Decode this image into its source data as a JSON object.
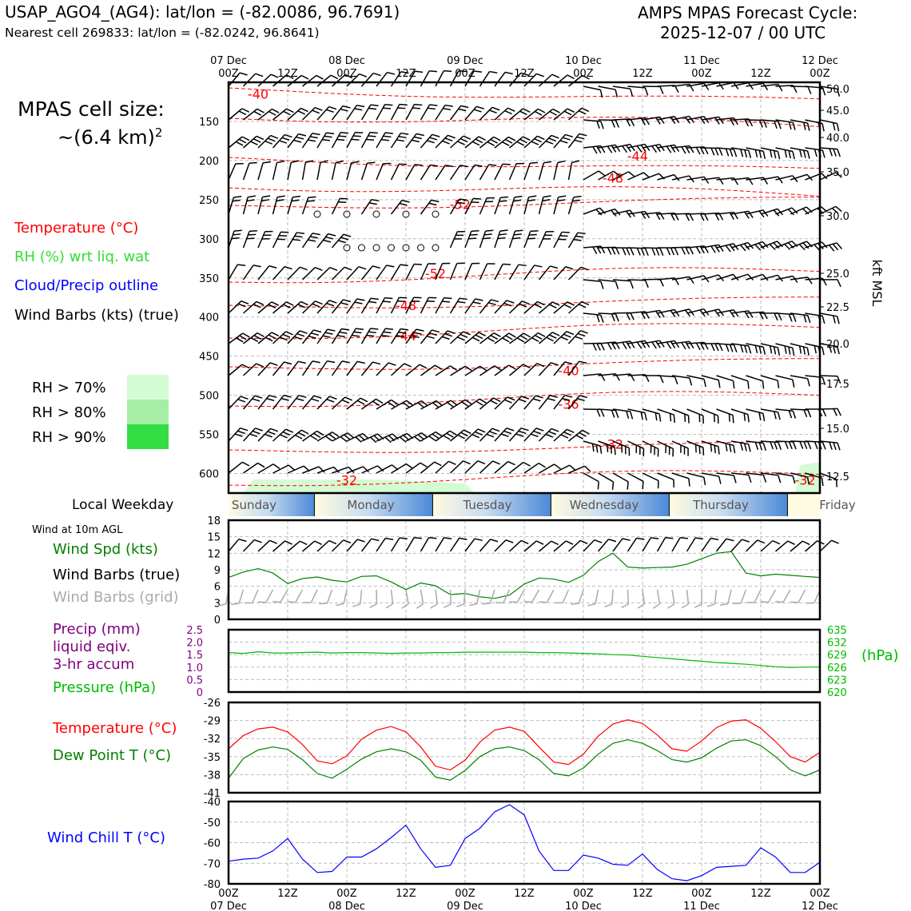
{
  "header": {
    "station": "USAP_AGO4_(AG4): lat/lon = (-82.0086, 96.7691)",
    "nearest": "Nearest cell 269833: lat/lon = (-82.0242, 96.8641)",
    "cycle_line1": "AMPS MPAS Forecast Cycle:",
    "cycle_line2": "2025-12-07 / 00 UTC"
  },
  "time_axis": {
    "top_dates": [
      "07 Dec",
      "08 Dec",
      "09 Dec",
      "10 Dec",
      "11 Dec",
      "12 Dec"
    ],
    "hour_labels": [
      "00Z",
      "12Z",
      "00Z",
      "12Z",
      "00Z",
      "12Z",
      "00Z",
      "12Z",
      "00Z",
      "12Z",
      "00Z"
    ]
  },
  "legend": {
    "cell_size_line1": "MPAS cell size:",
    "cell_size_line2": "~(6.4 km)",
    "cell_size_exp": "2",
    "temperature": "Temperature (°C)",
    "rh": "RH (%) wrt liq. wat",
    "cloud": "Cloud/Precip outline",
    "barbs": "Wind Barbs (kts) (true)",
    "rh70": "RH > 70%",
    "rh80": "RH > 80%",
    "rh90": "RH > 90%",
    "weekday_title": "Local Weekday",
    "wind_title": "Wind at 10m AGL",
    "wind_spd": "Wind Spd (kts)",
    "wind_barbs_true": "Wind Barbs (true)",
    "wind_barbs_grid": "Wind Barbs (grid)",
    "precip1": "Precip (mm)",
    "precip2": "liquid eqiv.",
    "precip3": "3-hr accum",
    "pressure": "Pressure (hPa)",
    "hpa_unit": "(hPa)",
    "temp2": "Temperature (°C)",
    "dewpoint": "Dew Point T (°C)",
    "windchill": "Wind Chill T (°C)"
  },
  "colors": {
    "temperature": "#ff0000",
    "rh": "#33cc33",
    "cloud": "#0000ff",
    "pressure": "#00bb00",
    "precip": "#800080",
    "windchill": "#0000ff",
    "dewpoint": "#008000",
    "rh70": "#d4fcd4",
    "rh80": "#a6eea6",
    "rh90": "#33dd44",
    "grid_barb": "#aaaaaa"
  },
  "chart_data": [
    {
      "type": "time-height cross section",
      "y_left_label_ticks": [
        "150",
        "200",
        "250",
        "300",
        "350",
        "400",
        "450",
        "500",
        "550",
        "600"
      ],
      "y_right_label": "kft MSL",
      "y_right_ticks": [
        "50.0",
        "45.0",
        "40.0",
        "35.0",
        "30.0",
        "25.0",
        "22.5",
        "20.0",
        "17.5",
        "15.0",
        "12.5"
      ],
      "isotherm_labels": [
        "-40",
        "-44",
        "-48",
        "-52",
        "-52",
        "-48",
        "-44",
        "-40",
        "-36",
        "-32",
        "-32",
        "-32"
      ],
      "isotherm_label_positions": [
        {
          "t": 6,
          "p": 115
        },
        {
          "t": 83,
          "p": 194
        },
        {
          "t": 78,
          "p": 222
        },
        {
          "t": 47,
          "p": 256
        },
        {
          "t": 42,
          "p": 344
        },
        {
          "t": 36,
          "p": 385
        },
        {
          "t": 36,
          "p": 424
        },
        {
          "t": 69,
          "p": 468
        },
        {
          "t": 69,
          "p": 511
        },
        {
          "t": 78,
          "p": 562
        },
        {
          "t": 24,
          "p": 608
        },
        {
          "t": 117,
          "p": 608
        }
      ],
      "wind_barbs": "black barbs at every 3 h on pressure levels, speed shown by flags (kt)",
      "rh_shading": "RH > 70% near 620 hPa",
      "time_range_hours": [
        0,
        120
      ],
      "pressure_range_hPa": [
        100,
        625
      ]
    },
    {
      "type": "weekday band",
      "labels": [
        "Sunday",
        "Monday",
        "Tuesday",
        "Wednesday",
        "Thursday",
        "Friday"
      ]
    },
    {
      "type": "line",
      "title": "Wind Spd (kts)",
      "y_ticks": [
        "0",
        "3",
        "6",
        "9",
        "12",
        "15",
        "18"
      ],
      "ylim": [
        0,
        18
      ],
      "x_hours": [
        0,
        3,
        6,
        9,
        12,
        15,
        18,
        21,
        24,
        27,
        30,
        33,
        36,
        39,
        42,
        45,
        48,
        51,
        54,
        57,
        60,
        63,
        66,
        69,
        72,
        75,
        78,
        81,
        84,
        87,
        90,
        93,
        96,
        99,
        102,
        105,
        108,
        111,
        114,
        117,
        120
      ],
      "series": [
        {
          "values": [
            7.6,
            8.6,
            9.2,
            8.4,
            6.5,
            7.4,
            7.7,
            7.1,
            6.8,
            7.8,
            7.9,
            6.8,
            5.4,
            6.6,
            6.1,
            4.5,
            4.7,
            4.1,
            3.8,
            4.4,
            6.4,
            7.5,
            7.3,
            6.7,
            8.0,
            10.5,
            12.0,
            9.5,
            9.3,
            9.4,
            9.5,
            10.0,
            11.0,
            12.0,
            12.3,
            8.4,
            7.9,
            8.2,
            8.0,
            7.8,
            7.6
          ]
        }
      ]
    },
    {
      "type": "line",
      "title": "Precip / Pressure",
      "y_left_ticks": [
        "0",
        "0.5",
        "1.0",
        "1.5",
        "2.0",
        "2.5"
      ],
      "y_right_ticks": [
        "620",
        "623",
        "626",
        "629",
        "632",
        "635"
      ],
      "precip_ylim": [
        0,
        2.5
      ],
      "pressure_ylim": [
        620,
        635
      ],
      "x_hours": [
        0,
        3,
        6,
        9,
        12,
        15,
        18,
        21,
        24,
        27,
        30,
        33,
        36,
        39,
        42,
        45,
        48,
        51,
        54,
        57,
        60,
        63,
        66,
        69,
        72,
        75,
        78,
        81,
        84,
        87,
        90,
        93,
        96,
        99,
        102,
        105,
        108,
        111,
        114,
        117,
        120
      ],
      "series": [
        {
          "values": [
            629.5,
            629.3,
            629.7,
            629.4,
            629.4,
            629.5,
            629.6,
            629.4,
            629.5,
            629.5,
            629.4,
            629.3,
            629.4,
            629.4,
            629.5,
            629.5,
            629.6,
            629.6,
            629.6,
            629.6,
            629.6,
            629.5,
            629.5,
            629.4,
            629.3,
            629.2,
            629.0,
            628.9,
            628.6,
            628.3,
            628.0,
            627.7,
            627.4,
            627.1,
            626.9,
            626.7,
            626.4,
            626.1,
            625.9,
            626.0,
            626.0
          ]
        }
      ]
    },
    {
      "type": "line",
      "title": "Temperature / Dew Point",
      "y_ticks": [
        "-26",
        "-29",
        "-32",
        "-35",
        "-38",
        "-41"
      ],
      "ylim": [
        -41,
        -26
      ],
      "x_hours": [
        0,
        3,
        6,
        9,
        12,
        15,
        18,
        21,
        24,
        27,
        30,
        33,
        36,
        39,
        42,
        45,
        48,
        51,
        54,
        57,
        60,
        63,
        66,
        69,
        72,
        75,
        78,
        81,
        84,
        87,
        90,
        93,
        96,
        99,
        102,
        105,
        108,
        111,
        114,
        117,
        120
      ],
      "series": [
        {
          "values": [
            -33.7,
            -31.5,
            -30.4,
            -30.1,
            -30.9,
            -33.0,
            -35.7,
            -36.2,
            -34.9,
            -32.1,
            -30.6,
            -30.0,
            -30.9,
            -33.4,
            -36.6,
            -37.2,
            -35.6,
            -32.6,
            -30.6,
            -30.1,
            -30.8,
            -33.4,
            -35.9,
            -36.3,
            -34.6,
            -31.6,
            -29.6,
            -28.9,
            -29.5,
            -31.4,
            -33.7,
            -34.1,
            -32.4,
            -30.2,
            -29.1,
            -28.9,
            -30.3,
            -32.5,
            -35.0,
            -35.9,
            -34.3
          ]
        },
        {
          "values": [
            -38.6,
            -35.3,
            -33.9,
            -33.4,
            -33.8,
            -35.5,
            -37.8,
            -38.6,
            -37.1,
            -35.4,
            -34.2,
            -33.7,
            -34.2,
            -35.6,
            -38.4,
            -38.9,
            -37.3,
            -35.0,
            -33.7,
            -33.4,
            -34.0,
            -35.5,
            -37.8,
            -38.2,
            -36.9,
            -34.6,
            -32.8,
            -32.2,
            -32.8,
            -34.0,
            -35.5,
            -35.9,
            -35.2,
            -33.6,
            -32.4,
            -32.2,
            -33.2,
            -35.0,
            -37.2,
            -38.2,
            -37.2
          ]
        }
      ]
    },
    {
      "type": "line",
      "title": "Wind Chill T (°C)",
      "y_ticks": [
        "-40",
        "-50",
        "-60",
        "-70",
        "-80"
      ],
      "ylim": [
        -80,
        -40
      ],
      "x_hours": [
        0,
        3,
        6,
        9,
        12,
        15,
        18,
        21,
        24,
        27,
        30,
        33,
        36,
        39,
        42,
        45,
        48,
        51,
        54,
        57,
        60,
        63,
        66,
        69,
        72,
        75,
        78,
        81,
        84,
        87,
        90,
        93,
        96,
        99,
        102,
        105,
        108,
        111,
        114,
        117,
        120
      ],
      "series": [
        {
          "values": [
            -69,
            -68,
            -67.5,
            -64,
            -58,
            -68,
            -74.5,
            -74,
            -67,
            -67,
            -63,
            -57.5,
            -51.5,
            -63,
            -72,
            -71,
            -58,
            -53,
            -45,
            -41.5,
            -46.5,
            -64,
            -73.5,
            -73.5,
            -66,
            -67.5,
            -70.5,
            -71,
            -65.5,
            -73,
            -77.5,
            -78.5,
            -76,
            -72,
            -71.5,
            -71,
            -62.5,
            -67,
            -74.5,
            -74.5,
            -69.5
          ]
        }
      ]
    }
  ],
  "xticks_bottom": {
    "hours": [
      "00Z",
      "12Z",
      "00Z",
      "12Z",
      "00Z",
      "12Z",
      "00Z",
      "12Z",
      "00Z",
      "12Z",
      "00Z"
    ],
    "dates": [
      "07 Dec",
      "08 Dec",
      "09 Dec",
      "10 Dec",
      "11 Dec",
      "12 Dec"
    ]
  }
}
